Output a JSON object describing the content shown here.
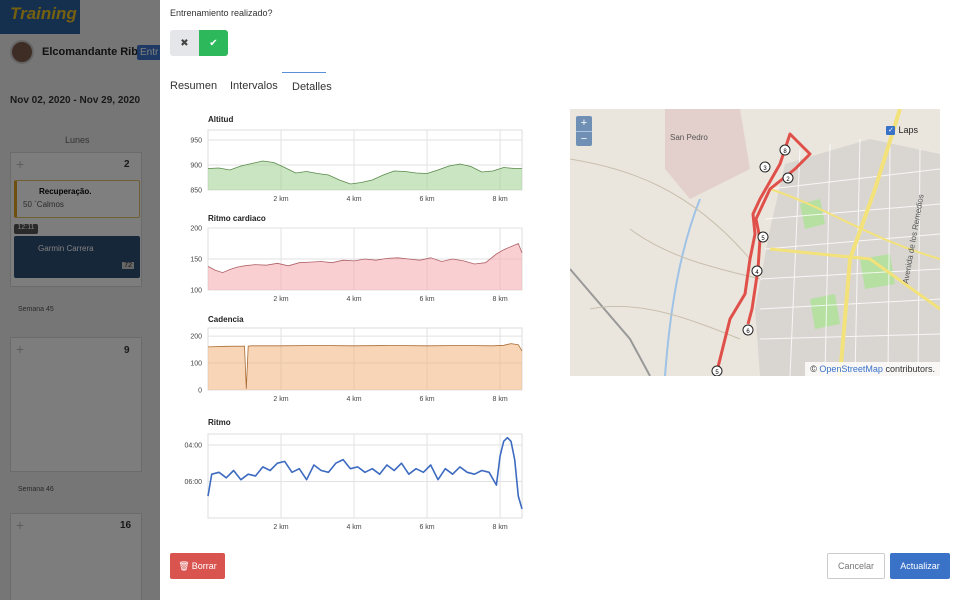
{
  "background": {
    "user_name": "Elcomandante Ribas",
    "entr_badge": "Entr",
    "date_range": "Nov 02, 2020 - Nov 29, 2020",
    "day_header": "Lunes",
    "day_numbers": [
      "2",
      "9",
      "16"
    ],
    "cards": [
      {
        "title": "Recuperação.",
        "subtitle": "50 `Calmos"
      },
      {
        "time": "12:11",
        "title": "Garmin Carrera",
        "badge": "72"
      }
    ],
    "weeks": [
      "Semana 45",
      "Semana 46"
    ]
  },
  "modal": {
    "question": "Entrenamiento realizado?",
    "toggle": {
      "no_icon": "close-icon",
      "yes_icon": "check-icon"
    },
    "tabs": [
      {
        "label": "Resumen",
        "active": false
      },
      {
        "label": "Intervalos",
        "active": false
      },
      {
        "label": "Detalles",
        "active": true
      }
    ],
    "delete_label": "Borrar",
    "cancel_label": "Cancelar",
    "update_label": "Actualizar"
  },
  "chart_data": [
    {
      "type": "area",
      "title": "Altitud",
      "x_ticks": [
        "2 km",
        "4 km",
        "6 km",
        "8 km"
      ],
      "y_ticks": [
        "850",
        "900",
        "950"
      ],
      "ylim": [
        850,
        970
      ],
      "xlim": [
        0,
        8.6
      ],
      "color": "#9fcf8f",
      "x": [
        0,
        0.3,
        0.6,
        0.9,
        1.2,
        1.5,
        1.8,
        2.1,
        2.4,
        2.7,
        3.0,
        3.3,
        3.6,
        3.9,
        4.2,
        4.5,
        4.8,
        5.1,
        5.4,
        5.7,
        6.0,
        6.3,
        6.6,
        6.9,
        7.2,
        7.5,
        7.8,
        8.1,
        8.4,
        8.6
      ],
      "values": [
        893,
        894,
        890,
        898,
        903,
        908,
        905,
        895,
        884,
        887,
        883,
        880,
        870,
        862,
        865,
        870,
        880,
        888,
        887,
        884,
        883,
        890,
        898,
        902,
        897,
        886,
        888,
        895,
        893,
        893
      ]
    },
    {
      "type": "area",
      "title": "Ritmo cardiaco",
      "x_ticks": [
        "2 km",
        "4 km",
        "6 km",
        "8 km"
      ],
      "y_ticks": [
        "100",
        "150",
        "200"
      ],
      "ylim": [
        100,
        200
      ],
      "xlim": [
        0,
        8.6
      ],
      "color": "#f5a7ad",
      "x": [
        0,
        0.2,
        0.4,
        0.6,
        0.8,
        1.0,
        1.3,
        1.6,
        1.9,
        2.2,
        2.5,
        2.8,
        3.1,
        3.4,
        3.7,
        4.0,
        4.3,
        4.6,
        4.9,
        5.2,
        5.5,
        5.8,
        6.1,
        6.4,
        6.7,
        7.0,
        7.3,
        7.6,
        7.9,
        8.1,
        8.3,
        8.5,
        8.6
      ],
      "values": [
        138,
        132,
        128,
        133,
        137,
        139,
        141,
        140,
        143,
        139,
        144,
        145,
        146,
        144,
        148,
        147,
        150,
        148,
        151,
        152,
        150,
        148,
        152,
        146,
        150,
        147,
        142,
        144,
        158,
        165,
        170,
        175,
        160
      ]
    },
    {
      "type": "area",
      "title": "Cadencia",
      "x_ticks": [
        "2 km",
        "4 km",
        "6 km",
        "8 km"
      ],
      "y_ticks": [
        "0",
        "100",
        "200"
      ],
      "ylim": [
        0,
        230
      ],
      "xlim": [
        0,
        8.6
      ],
      "color": "#f0b27a",
      "x": [
        0,
        0.5,
        1.0,
        1.05,
        1.1,
        1.2,
        2,
        3,
        4,
        5,
        6,
        7,
        7.8,
        8.1,
        8.3,
        8.5,
        8.6
      ],
      "values": [
        160,
        162,
        163,
        5,
        163,
        164,
        164,
        165,
        164,
        165,
        164,
        165,
        164,
        166,
        172,
        168,
        145
      ]
    },
    {
      "type": "line",
      "title": "Ritmo",
      "x_ticks": [
        "2 km",
        "4 km",
        "6 km",
        "8 km"
      ],
      "y_ticks": [
        "04:00",
        "06:00"
      ],
      "ylim": [
        8,
        3.4
      ],
      "xlim": [
        0,
        8.6
      ],
      "color": "#3d6bc0",
      "x": [
        0,
        0.1,
        0.3,
        0.5,
        0.7,
        0.9,
        1.1,
        1.3,
        1.5,
        1.7,
        1.9,
        2.1,
        2.3,
        2.5,
        2.7,
        2.9,
        3.1,
        3.3,
        3.5,
        3.7,
        3.9,
        4.1,
        4.3,
        4.5,
        4.7,
        4.9,
        5.1,
        5.3,
        5.5,
        5.7,
        5.9,
        6.1,
        6.3,
        6.5,
        6.7,
        6.9,
        7.1,
        7.3,
        7.5,
        7.7,
        7.9,
        8.0,
        8.1,
        8.2,
        8.3,
        8.4,
        8.5,
        8.6
      ],
      "values": [
        6.8,
        5.6,
        5.5,
        5.8,
        5.4,
        5.9,
        5.6,
        5.7,
        5.2,
        5.4,
        5.0,
        4.9,
        5.5,
        5.3,
        5.9,
        5.1,
        5.4,
        5.5,
        5.0,
        4.8,
        5.3,
        5.2,
        5.5,
        5.3,
        5.6,
        5.1,
        5.4,
        5.0,
        5.6,
        5.3,
        5.5,
        5.1,
        5.9,
        5.3,
        5.6,
        5.2,
        5.5,
        5.6,
        5.4,
        5.5,
        6.2,
        4.6,
        3.8,
        3.6,
        3.8,
        4.8,
        6.8,
        7.5
      ]
    }
  ],
  "map": {
    "place_labels": [
      "San Pedro",
      "Avenida de los Remedios"
    ],
    "laps_label": "Laps",
    "zoom_in": "+",
    "zoom_out": "−",
    "attribution_prefix": "©",
    "attribution_link": "OpenStreetMap",
    "attribution_suffix": "contributors.",
    "lap_markers": [
      "8",
      "3",
      "2",
      "5",
      "4",
      "6",
      "5"
    ],
    "route_color": "#e0504a"
  }
}
